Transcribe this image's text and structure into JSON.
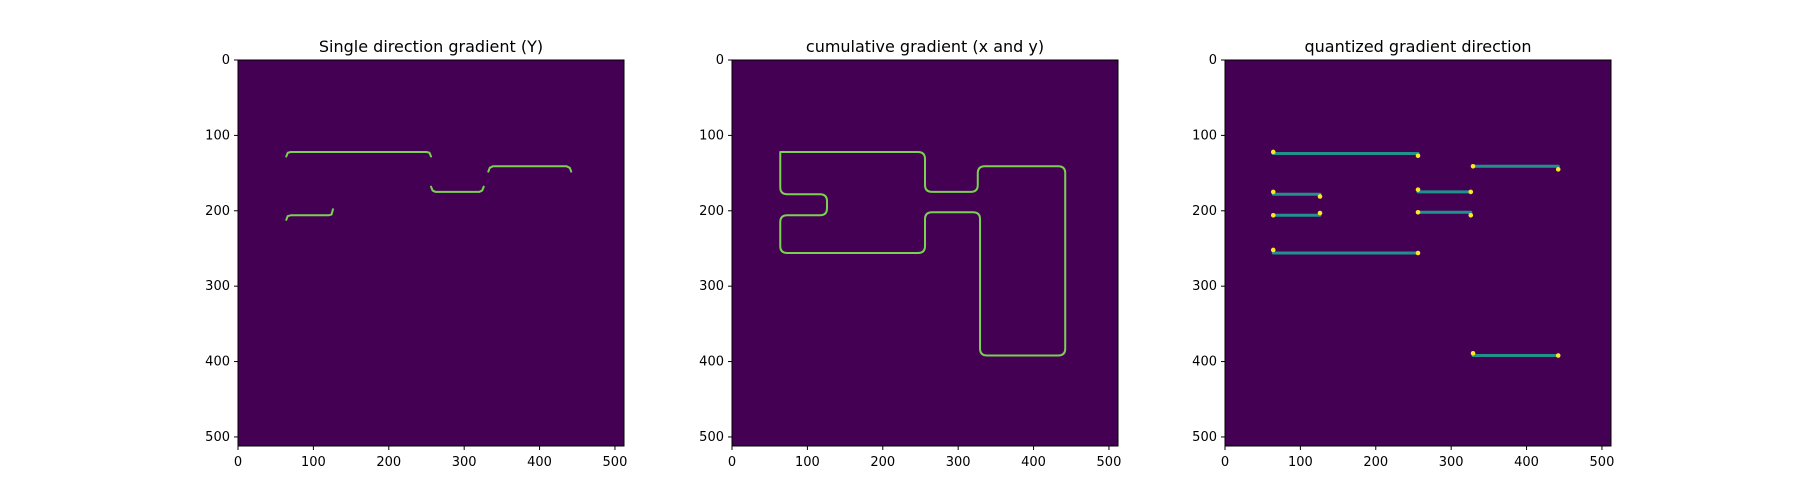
{
  "figure": {
    "background": "#ffffff",
    "image_background": "#440154",
    "edge_color": "#7ad151",
    "edge_color_strong": "#21918c",
    "edge_color_peak": "#fde725",
    "frame_color": "#000000"
  },
  "chart_data": [
    {
      "type": "heatmap",
      "title": "Single direction gradient (Y)",
      "xlim": [
        0,
        512
      ],
      "ylim": [
        512,
        0
      ],
      "x_ticks": [
        0,
        100,
        200,
        300,
        400,
        500
      ],
      "y_ticks": [
        0,
        100,
        200,
        300,
        400,
        500
      ],
      "background_value": "#440154",
      "paths": [
        {
          "points": [
            [
              64,
              128
            ],
            [
              66,
              123
            ],
            [
              70,
              122
            ],
            [
              250,
              122
            ],
            [
              254,
              123
            ],
            [
              256,
              128
            ]
          ],
          "color": "#7ad151"
        },
        {
          "points": [
            [
              64,
              212
            ],
            [
              66,
              207
            ],
            [
              70,
              206
            ],
            [
              120,
              206
            ],
            [
              124,
              205
            ],
            [
              126,
              198
            ]
          ],
          "color": "#7ad151"
        },
        {
          "points": [
            [
              256,
              168
            ],
            [
              258,
              173
            ],
            [
              262,
              175
            ],
            [
              320,
              175
            ],
            [
              324,
              173
            ],
            [
              326,
              168
            ]
          ],
          "color": "#7ad151"
        },
        {
          "points": [
            [
              332,
              148
            ],
            [
              334,
              143
            ],
            [
              338,
              141
            ],
            [
              436,
              141
            ],
            [
              440,
              143
            ],
            [
              442,
              148
            ]
          ],
          "color": "#7ad151"
        }
      ]
    },
    {
      "type": "heatmap",
      "title": "cumulative gradient (x and y)",
      "xlim": [
        0,
        512
      ],
      "ylim": [
        512,
        0
      ],
      "x_ticks": [
        0,
        100,
        200,
        300,
        400,
        500
      ],
      "y_ticks": [
        0,
        100,
        200,
        300,
        400,
        500
      ],
      "background_value": "#440154",
      "paths": [
        {
          "points": [
            [
              64,
              122
            ],
            [
              256,
              122
            ],
            [
              256,
              175
            ],
            [
              326,
              175
            ],
            [
              326,
              141
            ],
            [
              442,
              141
            ],
            [
              442,
              392
            ],
            [
              329,
              392
            ],
            [
              329,
              202
            ],
            [
              256,
              202
            ],
            [
              256,
              256
            ],
            [
              64,
              256
            ],
            [
              64,
              206
            ],
            [
              126,
              206
            ],
            [
              126,
              178
            ],
            [
              64,
              178
            ],
            [
              64,
              122
            ]
          ],
          "color": "#7ad151",
          "rounded": true
        }
      ]
    },
    {
      "type": "heatmap",
      "title": "quantized gradient direction",
      "xlim": [
        0,
        512
      ],
      "ylim": [
        512,
        0
      ],
      "x_ticks": [
        0,
        100,
        200,
        300,
        400,
        500
      ],
      "y_ticks": [
        0,
        100,
        200,
        300,
        400,
        500
      ],
      "background_value": "#440154",
      "paths": [
        {
          "points": [
            [
              64,
              124
            ],
            [
              256,
              124
            ]
          ],
          "color": "#21918c"
        },
        {
          "points": [
            [
              64,
              178
            ],
            [
              126,
              178
            ]
          ],
          "color": "#21918c"
        },
        {
          "points": [
            [
              64,
              206
            ],
            [
              126,
              206
            ]
          ],
          "color": "#21918c"
        },
        {
          "points": [
            [
              64,
              256
            ],
            [
              256,
              256
            ]
          ],
          "color": "#21918c"
        },
        {
          "points": [
            [
              256,
              175
            ],
            [
              326,
              175
            ]
          ],
          "color": "#21918c"
        },
        {
          "points": [
            [
              256,
              202
            ],
            [
              326,
              202
            ]
          ],
          "color": "#21918c"
        },
        {
          "points": [
            [
              329,
              141
            ],
            [
              442,
              141
            ]
          ],
          "color": "#21918c"
        },
        {
          "points": [
            [
              329,
              392
            ],
            [
              442,
              392
            ]
          ],
          "color": "#21918c"
        }
      ],
      "points": [
        [
          64,
          122
        ],
        [
          256,
          127
        ],
        [
          64,
          175
        ],
        [
          126,
          181
        ],
        [
          64,
          206
        ],
        [
          126,
          203
        ],
        [
          64,
          252
        ],
        [
          256,
          256
        ],
        [
          256,
          172
        ],
        [
          326,
          175
        ],
        [
          256,
          202
        ],
        [
          326,
          206
        ],
        [
          329,
          141
        ],
        [
          442,
          145
        ],
        [
          329,
          389
        ],
        [
          442,
          392
        ]
      ],
      "point_color": "#fde725"
    }
  ]
}
